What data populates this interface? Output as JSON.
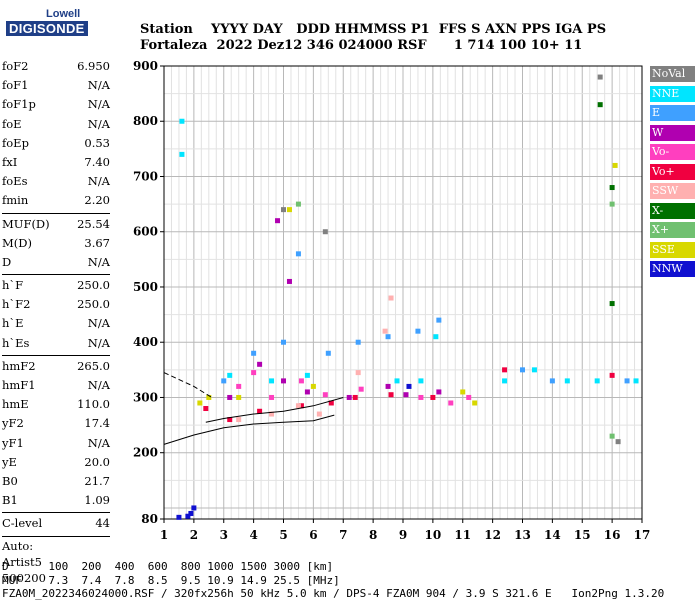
{
  "logo": {
    "line1": "Lowell",
    "line2": "DIGISONDE"
  },
  "header": {
    "line1": "Station    YYYY DAY   DDD HHMMSS P1  FFS S AXN PPS IGA PS",
    "line2": "Fortaleza  2022 Dez12 346 024000 RSF      1 714 100 10+ 11"
  },
  "params": {
    "group1": [
      {
        "label": "foF2",
        "value": "6.950"
      },
      {
        "label": "foF1",
        "value": "N/A"
      },
      {
        "label": "foF1p",
        "value": "N/A"
      },
      {
        "label": "foE",
        "value": "N/A"
      },
      {
        "label": "foEp",
        "value": "0.53"
      },
      {
        "label": "fxI",
        "value": "7.40"
      },
      {
        "label": "foEs",
        "value": "N/A"
      },
      {
        "label": "fmin",
        "value": "2.20"
      }
    ],
    "group2": [
      {
        "label": "MUF(D)",
        "value": "25.54"
      },
      {
        "label": "M(D)",
        "value": "3.67"
      },
      {
        "label": "D",
        "value": "N/A"
      }
    ],
    "group3": [
      {
        "label": "h`F",
        "value": "250.0"
      },
      {
        "label": "h`F2",
        "value": "250.0"
      },
      {
        "label": "h`E",
        "value": "N/A"
      },
      {
        "label": "h`Es",
        "value": "N/A"
      }
    ],
    "group4": [
      {
        "label": "hmF2",
        "value": "265.0"
      },
      {
        "label": "hmF1",
        "value": "N/A"
      },
      {
        "label": "hmE",
        "value": "110.0"
      },
      {
        "label": "yF2",
        "value": "17.4"
      },
      {
        "label": "yF1",
        "value": "N/A"
      },
      {
        "label": "yE",
        "value": "20.0"
      },
      {
        "label": "B0",
        "value": "21.7"
      },
      {
        "label": "B1",
        "value": "1.09"
      }
    ],
    "group5": [
      {
        "label": "C-level",
        "value": "44"
      }
    ],
    "auto": [
      "Auto:",
      "Artist5",
      "500200"
    ]
  },
  "legend": [
    {
      "label": "NoVal",
      "color": "#808080"
    },
    {
      "label": "NNE",
      "color": "#00e5ff"
    },
    {
      "label": "E",
      "color": "#3fa0ff"
    },
    {
      "label": "W",
      "color": "#b000b0"
    },
    {
      "label": "Vo-",
      "color": "#ff3fbf"
    },
    {
      "label": "Vo+",
      "color": "#f00040"
    },
    {
      "label": "SSW",
      "color": "#ffb0b0"
    },
    {
      "label": "X-",
      "color": "#007000"
    },
    {
      "label": "X+",
      "color": "#70c070"
    },
    {
      "label": "SSE",
      "color": "#d8d800"
    },
    {
      "label": "NNW",
      "color": "#1010d0"
    }
  ],
  "chart_data": {
    "type": "scatter",
    "xlim": [
      1,
      17
    ],
    "ylim": [
      80,
      900
    ],
    "x_ticks": [
      "1",
      "2",
      "3",
      "4",
      "5",
      "6",
      "7",
      "8",
      "9",
      "10",
      "11",
      "12",
      "13",
      "14",
      "15",
      "16",
      "17"
    ],
    "y_ticks": [
      "80",
      "200",
      "300",
      "400",
      "500",
      "600",
      "700",
      "800",
      "900"
    ],
    "grid": true,
    "series": [
      {
        "name": "W",
        "color": "#b000b0",
        "points": [
          [
            3.2,
            300
          ],
          [
            4.2,
            360
          ],
          [
            5.0,
            330
          ],
          [
            5.8,
            310
          ],
          [
            7.2,
            300
          ],
          [
            8.5,
            320
          ],
          [
            9.1,
            305
          ],
          [
            10.2,
            310
          ],
          [
            4.8,
            620
          ],
          [
            5.2,
            510
          ]
        ]
      },
      {
        "name": "Vo-",
        "color": "#ff3fbf",
        "points": [
          [
            3.5,
            320
          ],
          [
            4.0,
            345
          ],
          [
            4.6,
            300
          ],
          [
            5.6,
            330
          ],
          [
            6.4,
            305
          ],
          [
            7.6,
            315
          ],
          [
            9.6,
            300
          ],
          [
            10.6,
            290
          ],
          [
            11.2,
            300
          ]
        ]
      },
      {
        "name": "Vo+",
        "color": "#f00040",
        "points": [
          [
            2.4,
            280
          ],
          [
            3.2,
            260
          ],
          [
            4.2,
            275
          ],
          [
            5.6,
            285
          ],
          [
            6.6,
            290
          ],
          [
            7.4,
            300
          ],
          [
            8.6,
            305
          ],
          [
            10.0,
            300
          ],
          [
            12.4,
            350
          ],
          [
            16.0,
            340
          ]
        ]
      },
      {
        "name": "E",
        "color": "#3fa0ff",
        "points": [
          [
            3.0,
            330
          ],
          [
            4.0,
            380
          ],
          [
            5.0,
            400
          ],
          [
            5.5,
            560
          ],
          [
            6.5,
            380
          ],
          [
            7.5,
            400
          ],
          [
            8.5,
            410
          ],
          [
            9.5,
            420
          ],
          [
            10.2,
            440
          ],
          [
            13.0,
            350
          ],
          [
            14.0,
            330
          ],
          [
            16.5,
            330
          ]
        ]
      },
      {
        "name": "NNE",
        "color": "#00e5ff",
        "points": [
          [
            1.6,
            800
          ],
          [
            1.6,
            740
          ],
          [
            3.2,
            340
          ],
          [
            4.6,
            330
          ],
          [
            5.8,
            340
          ],
          [
            8.8,
            330
          ],
          [
            9.6,
            330
          ],
          [
            10.1,
            410
          ],
          [
            12.4,
            330
          ],
          [
            13.4,
            350
          ],
          [
            14.5,
            330
          ],
          [
            15.5,
            330
          ],
          [
            16.8,
            330
          ]
        ]
      },
      {
        "name": "SSW",
        "color": "#ffb0b0",
        "points": [
          [
            3.5,
            260
          ],
          [
            4.6,
            270
          ],
          [
            5.5,
            285
          ],
          [
            6.2,
            270
          ],
          [
            7.5,
            345
          ],
          [
            8.4,
            420
          ],
          [
            8.6,
            480
          ]
        ]
      },
      {
        "name": "SSE",
        "color": "#d8d800",
        "points": [
          [
            2.2,
            290
          ],
          [
            2.5,
            300
          ],
          [
            3.5,
            300
          ],
          [
            5.2,
            640
          ],
          [
            6.0,
            320
          ],
          [
            11.0,
            310
          ],
          [
            11.4,
            290
          ],
          [
            16.1,
            720
          ]
        ]
      },
      {
        "name": "X-",
        "color": "#007000",
        "points": [
          [
            15.6,
            830
          ],
          [
            16.0,
            680
          ],
          [
            16.0,
            470
          ]
        ]
      },
      {
        "name": "X+",
        "color": "#70c070",
        "points": [
          [
            5.5,
            650
          ],
          [
            16.0,
            650
          ],
          [
            16.0,
            230
          ]
        ]
      },
      {
        "name": "NoVal",
        "color": "#808080",
        "points": [
          [
            5.0,
            640
          ],
          [
            6.4,
            600
          ],
          [
            15.6,
            880
          ],
          [
            16.2,
            220
          ]
        ]
      },
      {
        "name": "NNW",
        "color": "#1010d0",
        "points": [
          [
            1.8,
            85
          ],
          [
            1.9,
            90
          ],
          [
            2.0,
            100
          ],
          [
            1.5,
            83
          ],
          [
            9.2,
            320
          ]
        ]
      }
    ],
    "profile_lines": [
      {
        "style": "dashed",
        "x": [
          1.0,
          2.0,
          2.6
        ],
        "y": [
          345,
          320,
          300
        ]
      },
      {
        "style": "solid",
        "x": [
          1.0,
          2.0,
          3.0,
          4.0,
          5.0,
          6.0,
          6.7
        ],
        "y": [
          215,
          232,
          245,
          252,
          255,
          258,
          268
        ]
      },
      {
        "style": "solid",
        "x": [
          2.4,
          3.0,
          4.0,
          5.0,
          6.0,
          7.0
        ],
        "y": [
          255,
          262,
          270,
          275,
          285,
          300
        ]
      }
    ]
  },
  "footer": {
    "line1": "D      100  200  400  600  800 1000 1500 3000 [km]",
    "line2": "MUF    7.3  7.4  7.8  8.5  9.5 10.9 14.9 25.5 [MHz]",
    "line3": "FZA0M_2022346024000.RSF / 320fx256h 50 kHz 5.0 km / DPS-4 FZA0M 904 / 3.9 S 321.6 E   Ion2Png 1.3.20"
  }
}
